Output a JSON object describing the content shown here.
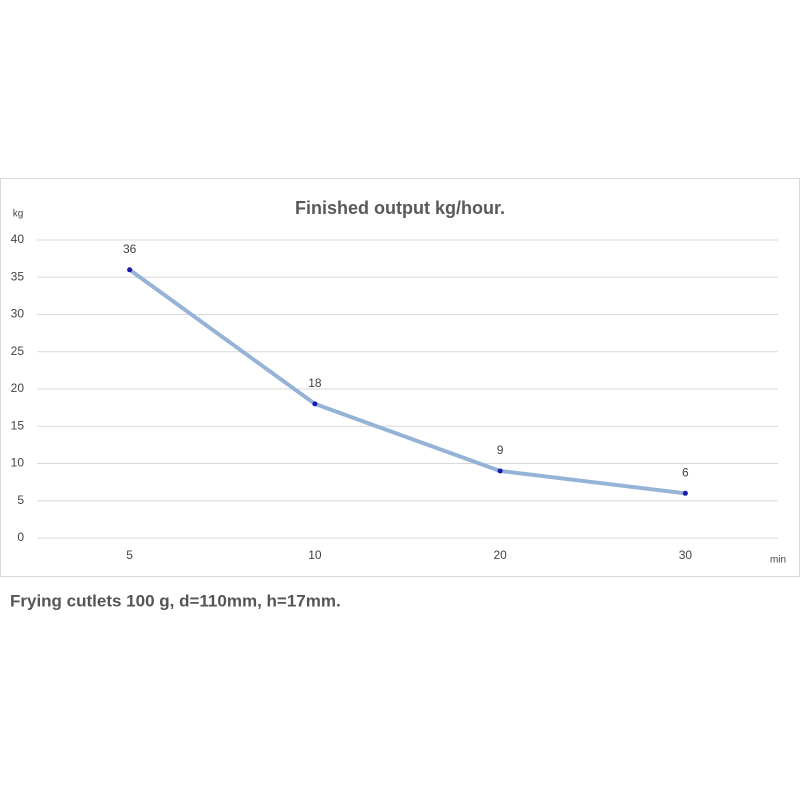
{
  "chart_data": {
    "type": "line",
    "title": "Finished output kg/hour.",
    "y_label": "kg",
    "x_label": "min",
    "categories": [
      "5",
      "10",
      "20",
      "30"
    ],
    "values": [
      36,
      18,
      9,
      6
    ],
    "color": "#95b3d7",
    "marker_color": "#1a1ab0",
    "ylim": [
      0,
      40
    ],
    "yticks": [
      0,
      5,
      10,
      15,
      20,
      25,
      30,
      35,
      40
    ],
    "grid": true,
    "caption": "Frying cutlets 100 g, d=110mm, h=17mm."
  }
}
